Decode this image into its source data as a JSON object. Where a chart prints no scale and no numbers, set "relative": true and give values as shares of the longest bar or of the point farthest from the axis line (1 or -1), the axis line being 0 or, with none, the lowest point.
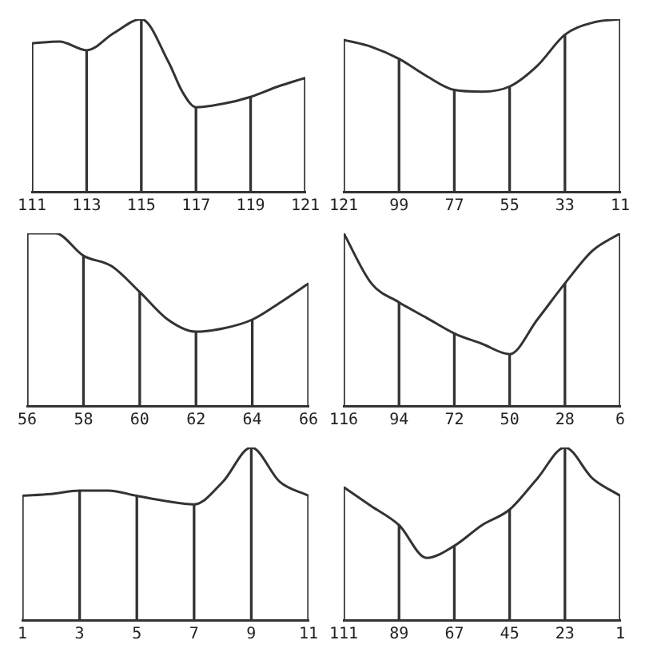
{
  "chart_data": [
    {
      "type": "line",
      "relative": true,
      "marker": "none",
      "x": [
        111,
        112,
        113,
        114,
        115,
        116,
        116.5,
        117,
        118,
        119,
        120,
        121
      ],
      "xlim": [
        111,
        121
      ],
      "xticks": [
        111,
        113,
        115,
        117,
        119,
        121
      ],
      "series": [
        {
          "color": "#333333",
          "values": [
            0.86,
            0.87,
            0.82,
            0.92,
            1,
            0.75,
            0.58,
            0.49,
            0.51,
            0.55,
            0.61,
            0.66
          ]
        },
        {
          "type": "bar",
          "color": "#333333",
          "x": [
            111,
            113,
            115,
            117,
            119,
            121
          ],
          "values": [
            0.86,
            0.82,
            1,
            0.49,
            0.55,
            0.66
          ]
        }
      ]
    },
    {
      "type": "line",
      "relative": true,
      "marker": "none",
      "x": [
        121,
        110,
        99,
        88,
        77,
        66,
        55,
        44,
        33,
        22,
        11
      ],
      "xlim": [
        121,
        11
      ],
      "xticks": [
        121,
        99,
        77,
        55,
        33,
        11
      ],
      "series": [
        {
          "color": "#333333",
          "values": [
            0.88,
            0.84,
            0.77,
            0.67,
            0.59,
            0.58,
            0.61,
            0.73,
            0.91,
            0.98,
            1
          ]
        },
        {
          "type": "bar",
          "color": "#333333",
          "x": [
            121,
            99,
            77,
            55,
            33,
            11
          ],
          "values": [
            0.88,
            0.77,
            0.59,
            0.61,
            0.91,
            1
          ]
        }
      ]
    },
    {
      "type": "line",
      "relative": true,
      "marker": "none",
      "x": [
        56,
        57,
        58,
        59,
        60,
        61,
        62,
        63,
        64,
        65,
        66
      ],
      "xlim": [
        56,
        66
      ],
      "xticks": [
        56,
        58,
        60,
        62,
        64,
        66
      ],
      "series": [
        {
          "color": "#333333",
          "values": [
            1,
            1,
            0.87,
            0.81,
            0.66,
            0.5,
            0.43,
            0.45,
            0.5,
            0.6,
            0.71
          ]
        },
        {
          "type": "bar",
          "color": "#333333",
          "x": [
            56,
            58,
            60,
            62,
            64,
            66
          ],
          "values": [
            1,
            0.87,
            0.66,
            0.43,
            0.5,
            0.71
          ]
        }
      ]
    },
    {
      "type": "line",
      "relative": true,
      "marker": "none",
      "x": [
        116,
        105,
        94,
        83,
        72,
        61,
        50,
        39,
        28,
        17,
        6
      ],
      "xlim": [
        116,
        6
      ],
      "xticks": [
        116,
        94,
        72,
        50,
        28,
        6
      ],
      "series": [
        {
          "color": "#333333",
          "values": [
            1,
            0.71,
            0.6,
            0.51,
            0.42,
            0.36,
            0.3,
            0.5,
            0.71,
            0.9,
            1
          ]
        },
        {
          "type": "bar",
          "color": "#333333",
          "x": [
            116,
            94,
            72,
            50,
            28,
            6
          ],
          "values": [
            1,
            0.6,
            0.42,
            0.3,
            0.71,
            1
          ]
        }
      ]
    },
    {
      "type": "line",
      "relative": true,
      "marker": "none",
      "x": [
        1,
        2,
        3,
        4,
        5,
        6,
        7,
        8,
        9,
        10,
        11
      ],
      "xlim": [
        1,
        11
      ],
      "xticks": [
        1,
        3,
        5,
        7,
        9,
        11
      ],
      "series": [
        {
          "color": "#333333",
          "values": [
            0.72,
            0.73,
            0.75,
            0.75,
            0.72,
            0.69,
            0.67,
            0.8,
            1,
            0.8,
            0.72
          ]
        },
        {
          "type": "bar",
          "color": "#333333",
          "x": [
            1,
            3,
            5,
            7,
            9,
            11
          ],
          "values": [
            0.72,
            0.75,
            0.72,
            0.67,
            1,
            0.72
          ]
        }
      ]
    },
    {
      "type": "line",
      "relative": true,
      "marker": "none",
      "x": [
        111,
        100,
        89,
        78,
        67,
        56,
        45,
        34,
        23,
        12,
        1
      ],
      "xlim": [
        111,
        1
      ],
      "xticks": [
        111,
        89,
        67,
        45,
        23,
        1
      ],
      "series": [
        {
          "color": "#333333",
          "values": [
            0.77,
            0.66,
            0.55,
            0.36,
            0.43,
            0.55,
            0.64,
            0.82,
            1,
            0.82,
            0.72
          ]
        },
        {
          "type": "bar",
          "color": "#333333",
          "x": [
            111,
            89,
            67,
            45,
            23,
            1
          ],
          "values": [
            0.77,
            0.55,
            0.43,
            0.64,
            1,
            0.72
          ]
        }
      ]
    }
  ]
}
